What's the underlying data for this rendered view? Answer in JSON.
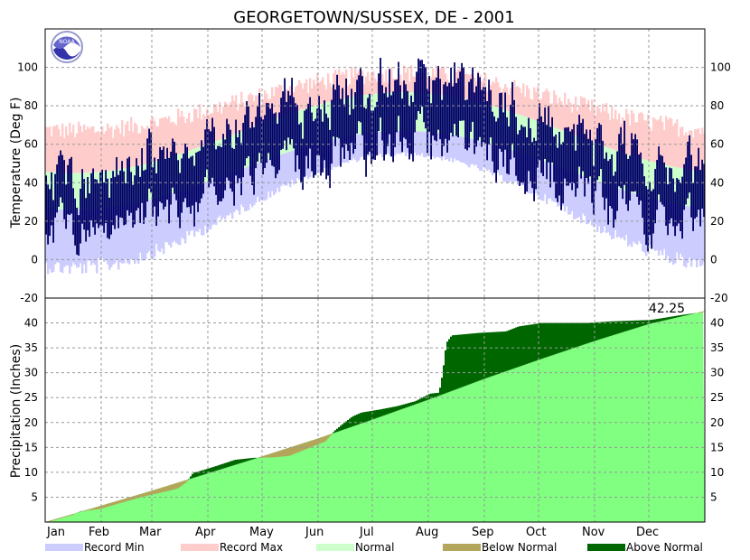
{
  "title": "GEORGETOWN/SUSSEX, DE - 2001",
  "colors": {
    "record_min": "#ccccff",
    "record_max": "#ffcccc",
    "normal": "#ccffcc",
    "observed_temp": "#000066",
    "below_normal": "#b3a65a",
    "above_normal": "#006600",
    "normal_precip": "#80ff80",
    "grid": "#999999"
  },
  "logo": {
    "icon": "noaa-logo-icon",
    "text": "NOAA"
  },
  "chart_data": [
    {
      "type": "area",
      "name": "temperature",
      "ylabel": "Temperature (Deg F)",
      "ylim": [
        -20,
        120
      ],
      "yticks": [
        -20,
        0,
        20,
        40,
        60,
        80,
        100
      ],
      "grid": true,
      "days": 365,
      "bands": {
        "record_max": {
          "winter": 67,
          "summer": 97,
          "jitter": 5
        },
        "normal_high": {
          "winter": 45,
          "summer": 87
        },
        "normal_low": {
          "winter": 26,
          "summer": 67
        },
        "record_min": {
          "winter": 0,
          "summer": 56,
          "jitter": 6
        }
      },
      "observed": {
        "winter_low": 20,
        "summer_low": 64,
        "winter_high": 40,
        "summer_high": 87,
        "range_swing": 20
      }
    },
    {
      "type": "area",
      "name": "precipitation",
      "ylabel": "Precipitation (Inches)",
      "ylim": [
        0,
        45
      ],
      "yticks": [
        5,
        10,
        15,
        20,
        25,
        30,
        35,
        40
      ],
      "grid": true,
      "x_tick_labels": [
        "Jan",
        "Feb",
        "Mar",
        "Apr",
        "May",
        "Jun",
        "Jul",
        "Aug",
        "Sep",
        "Oct",
        "Nov",
        "Dec"
      ],
      "normal_total": 42.4,
      "actual_total_label": "42.25",
      "normal_cumulative": [
        [
          0,
          0
        ],
        [
          31,
          3.3
        ],
        [
          59,
          6.3
        ],
        [
          90,
          9.8
        ],
        [
          120,
          13.2
        ],
        [
          151,
          16.8
        ],
        [
          181,
          20.6
        ],
        [
          212,
          24.6
        ],
        [
          243,
          28.8
        ],
        [
          273,
          32.6
        ],
        [
          304,
          36.4
        ],
        [
          334,
          39.8
        ],
        [
          365,
          42.4
        ]
      ],
      "actual_cumulative": [
        [
          0,
          0
        ],
        [
          12,
          1.2
        ],
        [
          20,
          2.2
        ],
        [
          30,
          2.6
        ],
        [
          45,
          4.2
        ],
        [
          55,
          5.2
        ],
        [
          65,
          6.0
        ],
        [
          73,
          6.7
        ],
        [
          78,
          8.0
        ],
        [
          82,
          9.9
        ],
        [
          88,
          10.5
        ],
        [
          95,
          11.3
        ],
        [
          105,
          12.5
        ],
        [
          115,
          12.9
        ],
        [
          127,
          13.0
        ],
        [
          135,
          13.3
        ],
        [
          150,
          15.5
        ],
        [
          155,
          16.2
        ],
        [
          160,
          18.3
        ],
        [
          165,
          19.8
        ],
        [
          170,
          21.2
        ],
        [
          175,
          22.0
        ],
        [
          185,
          22.6
        ],
        [
          195,
          23.3
        ],
        [
          205,
          24.3
        ],
        [
          213,
          25.8
        ],
        [
          218,
          26.0
        ],
        [
          220,
          30.0
        ],
        [
          222,
          36.0
        ],
        [
          225,
          37.5
        ],
        [
          240,
          38.0
        ],
        [
          255,
          38.3
        ],
        [
          262,
          39.3
        ],
        [
          275,
          40.0
        ],
        [
          300,
          40.0
        ],
        [
          312,
          40.3
        ],
        [
          335,
          40.6
        ],
        [
          342,
          41.0
        ],
        [
          352,
          41.6
        ],
        [
          360,
          42.0
        ],
        [
          365,
          42.25
        ]
      ]
    }
  ],
  "legend": [
    {
      "label": "Record Min",
      "color": "#ccccff"
    },
    {
      "label": "Record Max",
      "color": "#ffcccc"
    },
    {
      "label": "Normal",
      "color": "#ccffcc"
    },
    {
      "label": "Below Normal",
      "color": "#b3a65a"
    },
    {
      "label": "Above Normal",
      "color": "#006600"
    }
  ]
}
